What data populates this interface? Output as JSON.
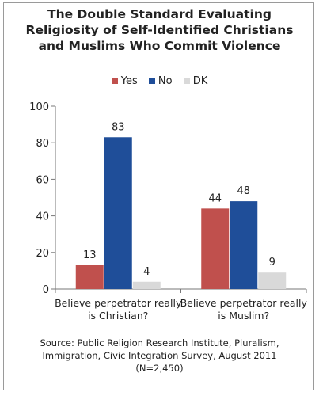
{
  "title_lines": [
    "The Double Standard Evaluating",
    "Religiosity of Self-Identified Christians",
    "and Muslims Who Commit Violence"
  ],
  "source_lines": [
    "Source: Public Religion Research Institute, Pluralism,",
    "Immigration, Civic Integration Survey, August 2011",
    "(N=2,450)"
  ],
  "colors": {
    "Yes": "#c0504d",
    "No": "#1f4e99",
    "DK": "#d9d9d9"
  },
  "chart_data": {
    "type": "bar",
    "title": "The Double Standard Evaluating Religiosity of Self-Identified Christians and Muslims Who Commit Violence",
    "categories": [
      [
        "Believe perpetrator really",
        "is Christian?"
      ],
      [
        "Believe perpetrator really",
        "is Muslim?"
      ]
    ],
    "series": [
      {
        "name": "Yes",
        "values": [
          13,
          44
        ]
      },
      {
        "name": "No",
        "values": [
          83,
          48
        ]
      },
      {
        "name": "DK",
        "values": [
          4,
          9
        ]
      }
    ],
    "ylim": [
      0,
      100
    ],
    "yticks": [
      0,
      20,
      40,
      60,
      80,
      100
    ],
    "legend": "top",
    "grid": false
  }
}
